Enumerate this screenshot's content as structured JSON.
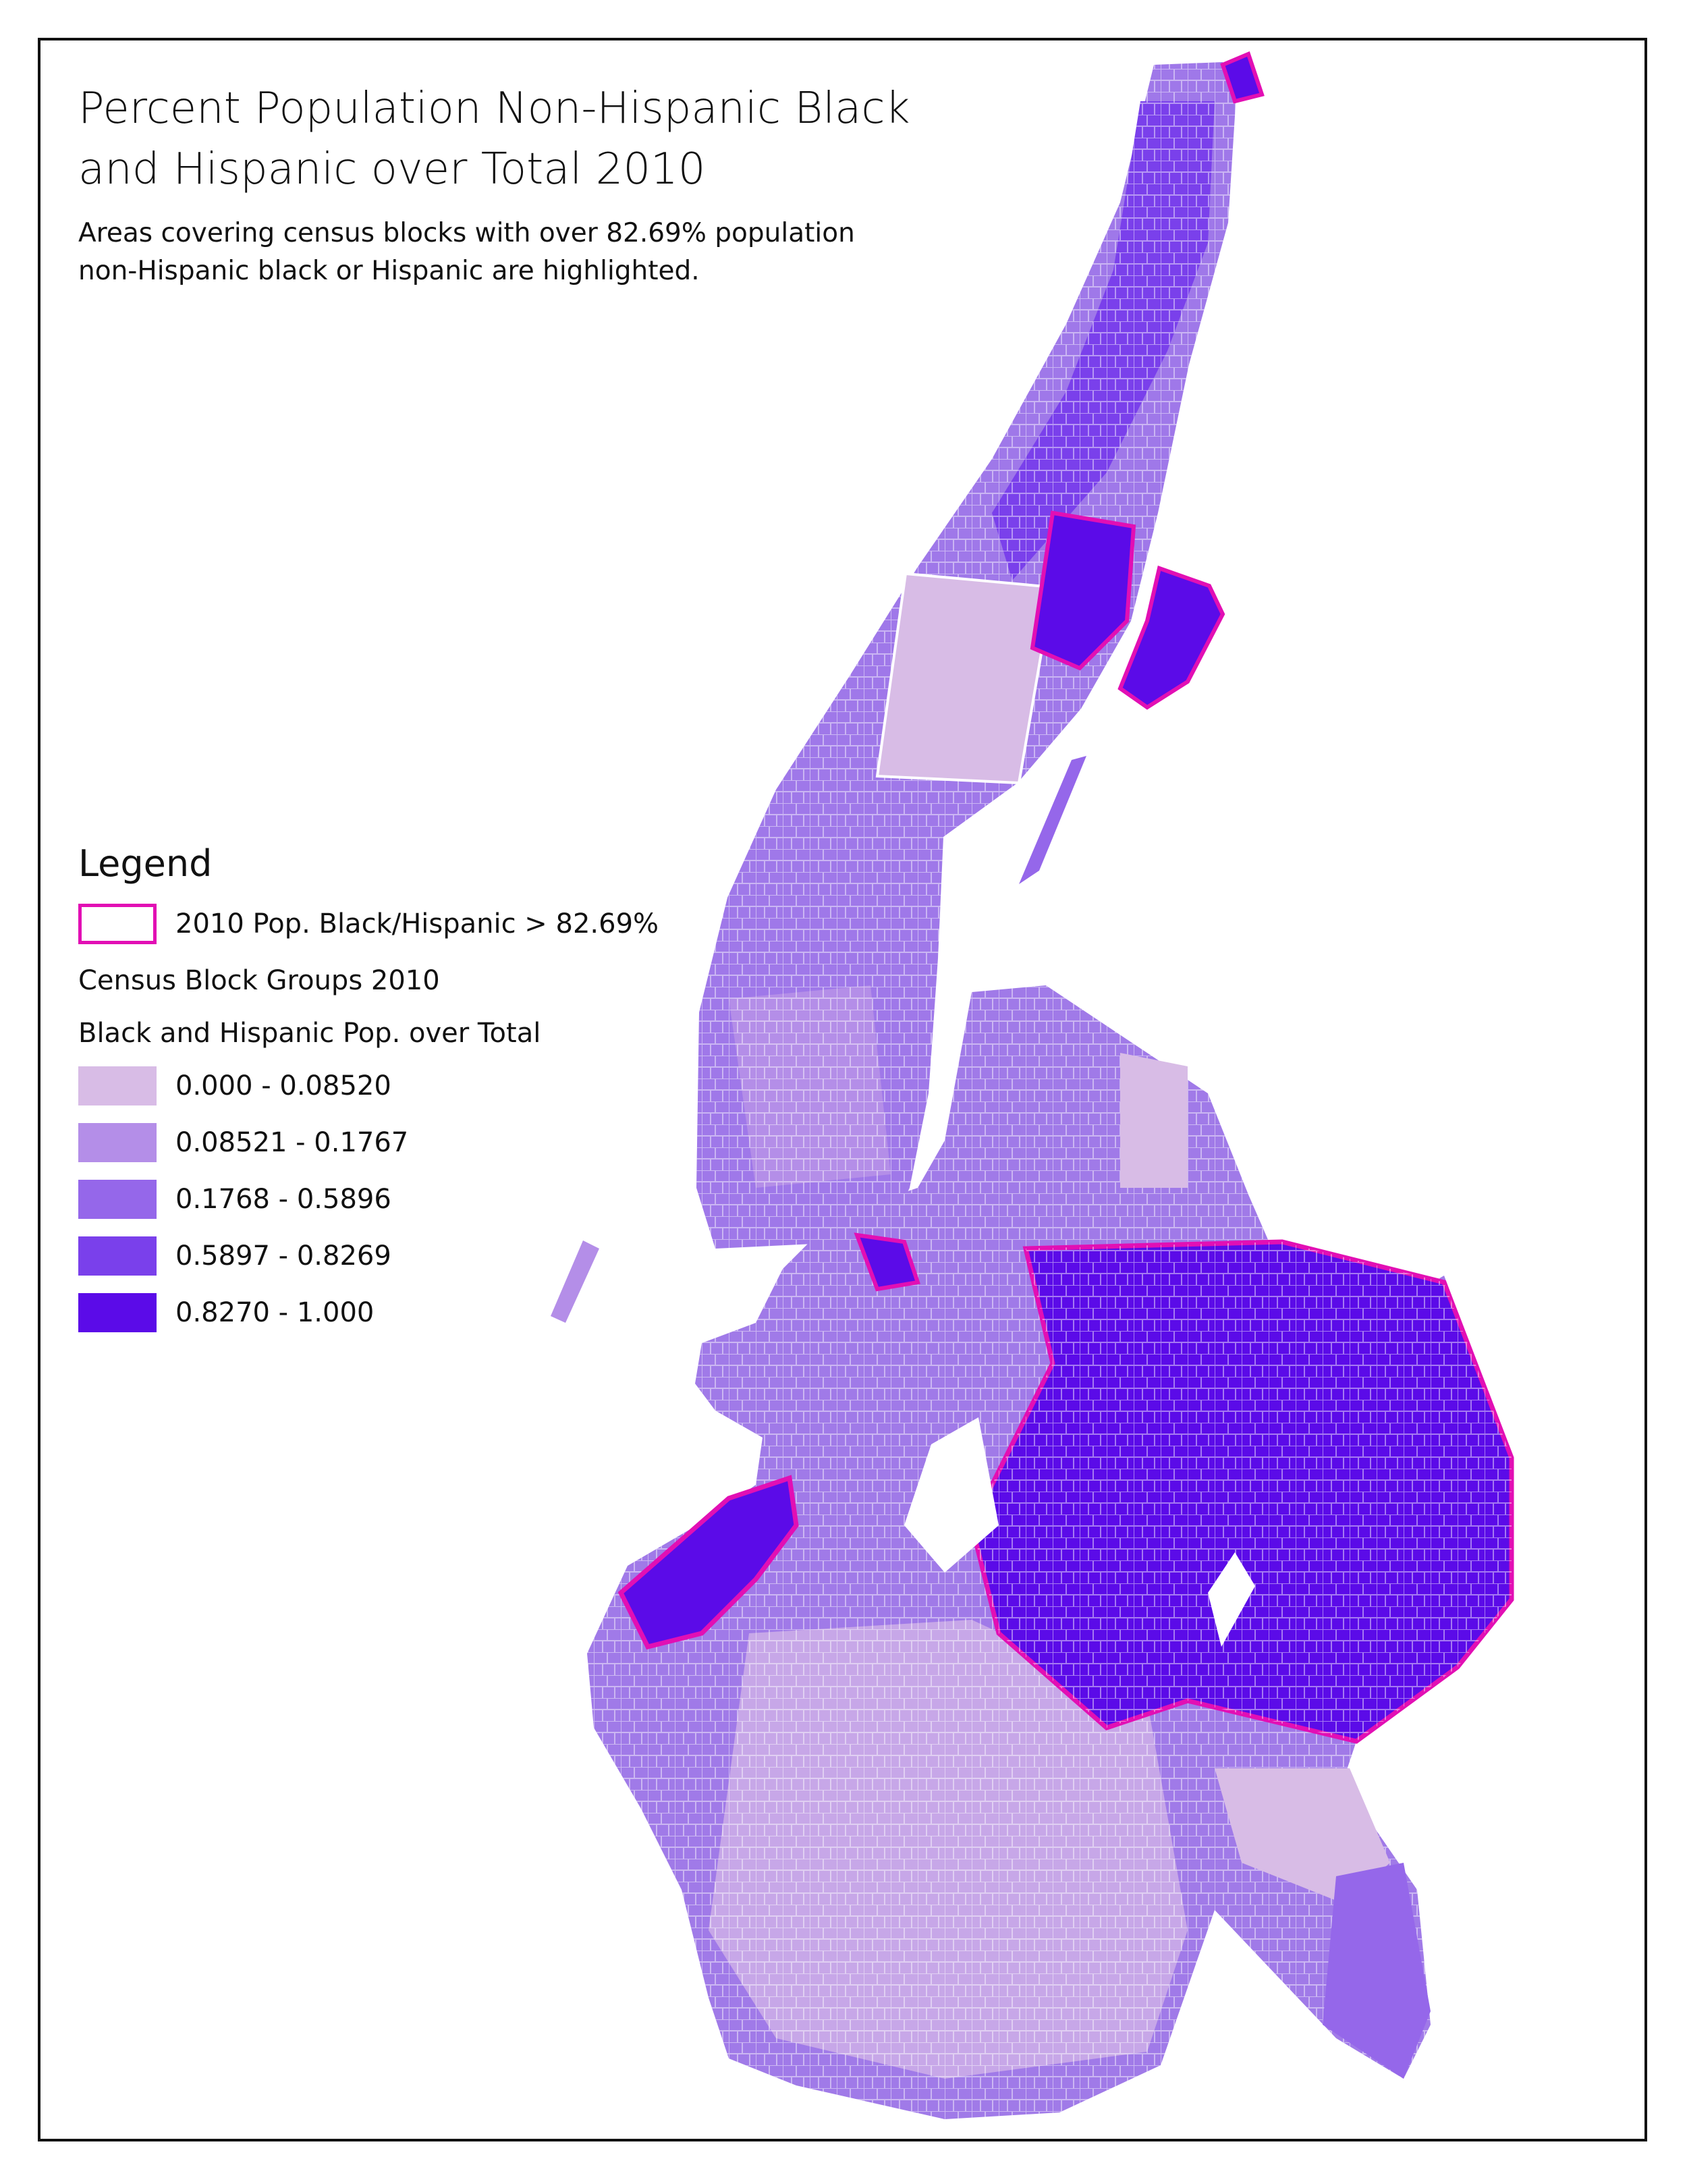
{
  "map": {
    "title": "Percent Population Non-Hispanic Black\nand Hispanic over Total 2010",
    "subtitle": "Areas covering census blocks with over 82.69% population\nnon-Hispanic black or Hispanic are highlighted.",
    "highlight_color": "#e20fb4"
  },
  "legend": {
    "title": "Legend",
    "highlight_label": "2010 Pop. Black/Hispanic > 82.69%",
    "layer_label": "Census Block Groups 2010",
    "field_label": "Black and Hispanic Pop. over Total",
    "classes": [
      {
        "label": "0.000 - 0.08520",
        "color": "#d8bce6"
      },
      {
        "label": "0.08521 - 0.1767",
        "color": "#b48ee8"
      },
      {
        "label": "0.1768 - 0.5896",
        "color": "#9567ea"
      },
      {
        "label": "0.5897 - 0.8269",
        "color": "#7a40eb"
      },
      {
        "label": "0.8270 - 1.000",
        "color": "#5b0be8"
      }
    ]
  }
}
